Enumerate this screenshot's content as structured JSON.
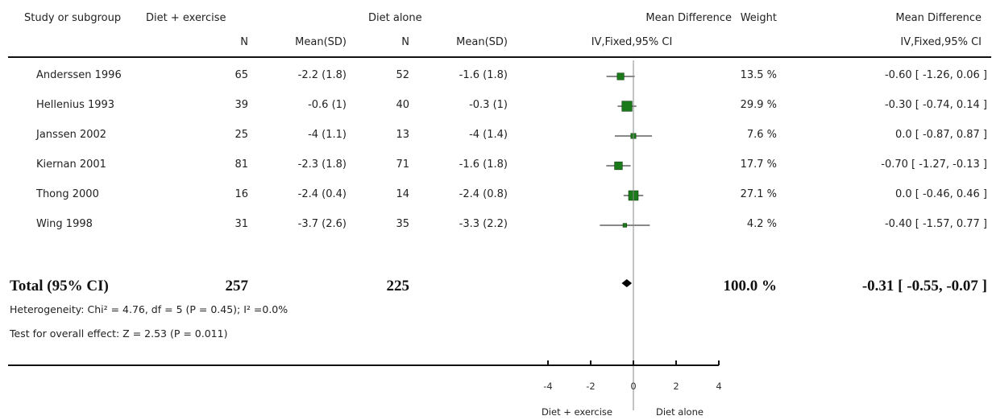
{
  "headers": {
    "study": "Study or subgroup",
    "group1": "Diet + exercise",
    "group2": "Diet alone",
    "n1": "N",
    "mean1": "Mean(SD)",
    "n2": "N",
    "mean2": "Mean(SD)",
    "plot_title": "Mean Difference",
    "plot_sub": "IV,Fixed,95% CI",
    "weight": "Weight",
    "md_title": "Mean Difference",
    "md_sub": "IV,Fixed,95% CI"
  },
  "total": {
    "label": "Total (95% CI)",
    "n1": "257",
    "n2": "225",
    "weight": "100.0 %",
    "ci_text": "-0.31 [ -0.55, -0.07 ]"
  },
  "footnotes": {
    "heterogeneity": "Heterogeneity: Chi² = 4.76, df = 5 (P = 0.45); I² =0.0%",
    "overall": "Test for overall effect: Z = 2.53 (P = 0.011)"
  },
  "axis": {
    "left_label": "Diet + exercise",
    "right_label": "Diet alone"
  },
  "colors": {
    "marker": "#1a7a1a",
    "line": "#111111",
    "zero": "#888888"
  },
  "chart_data": {
    "type": "forest",
    "studies": [
      {
        "study": "Anderssen 1996",
        "n1": "65",
        "mean_sd1": "-2.2 (1.8)",
        "n2": "52",
        "mean_sd2": "-1.6 (1.8)",
        "md": -0.6,
        "lo": -1.26,
        "hi": 0.06,
        "weight": 13.5,
        "weight_text": "13.5 %",
        "ci_text": "-0.60 [ -1.26, 0.06 ]"
      },
      {
        "study": "Hellenius 1993",
        "n1": "39",
        "mean_sd1": "-0.6 (1)",
        "n2": "40",
        "mean_sd2": "-0.3 (1)",
        "md": -0.3,
        "lo": -0.74,
        "hi": 0.14,
        "weight": 29.9,
        "weight_text": "29.9 %",
        "ci_text": "-0.30 [ -0.74, 0.14 ]"
      },
      {
        "study": "Janssen 2002",
        "n1": "25",
        "mean_sd1": "-4 (1.1)",
        "n2": "13",
        "mean_sd2": "-4 (1.4)",
        "md": 0.0,
        "lo": -0.87,
        "hi": 0.87,
        "weight": 7.6,
        "weight_text": "7.6 %",
        "ci_text": "0.0 [ -0.87, 0.87 ]"
      },
      {
        "study": "Kiernan 2001",
        "n1": "81",
        "mean_sd1": "-2.3 (1.8)",
        "n2": "71",
        "mean_sd2": "-1.6 (1.8)",
        "md": -0.7,
        "lo": -1.27,
        "hi": -0.13,
        "weight": 17.7,
        "weight_text": "17.7 %",
        "ci_text": "-0.70 [ -1.27, -0.13 ]"
      },
      {
        "study": "Thong 2000",
        "n1": "16",
        "mean_sd1": "-2.4 (0.4)",
        "n2": "14",
        "mean_sd2": "-2.4 (0.8)",
        "md": 0.0,
        "lo": -0.46,
        "hi": 0.46,
        "weight": 27.1,
        "weight_text": "27.1 %",
        "ci_text": "0.0 [ -0.46, 0.46 ]"
      },
      {
        "study": "Wing 1998",
        "n1": "31",
        "mean_sd1": "-3.7 (2.6)",
        "n2": "35",
        "mean_sd2": "-3.3 (2.2)",
        "md": -0.4,
        "lo": -1.57,
        "hi": 0.77,
        "weight": 4.2,
        "weight_text": "4.2 %",
        "ci_text": "-0.40 [ -1.57, 0.77 ]"
      }
    ],
    "pooled": {
      "md": -0.31,
      "lo": -0.55,
      "hi": -0.07
    },
    "xlim": [
      -4,
      4
    ],
    "ticks": [
      -4,
      -2,
      0,
      2,
      4
    ]
  }
}
